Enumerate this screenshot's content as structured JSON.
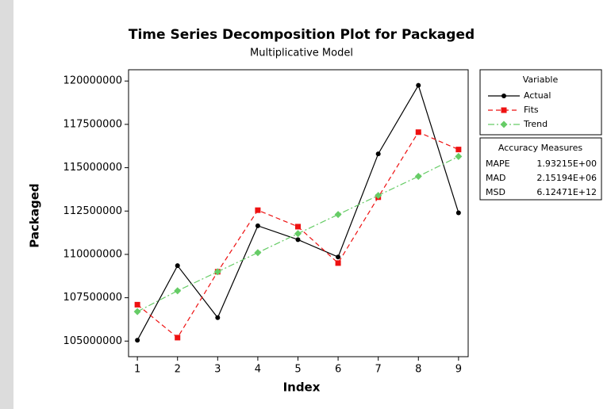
{
  "chart_data": {
    "type": "line",
    "title": "Time Series Decomposition Plot for Packaged",
    "subtitle": "Multiplicative Model",
    "x_label": "Index",
    "y_label": "Packaged",
    "x": [
      1,
      2,
      3,
      4,
      5,
      6,
      7,
      8,
      9
    ],
    "xlim": [
      0.78,
      9.24
    ],
    "xticks": [
      1,
      2,
      3,
      4,
      5,
      6,
      7,
      8,
      9
    ],
    "ylim": [
      104100000,
      120650000
    ],
    "yticks": [
      105000000,
      107500000,
      110000000,
      112500000,
      115000000,
      117500000,
      120000000
    ],
    "legend_title": "Variable",
    "series": [
      {
        "name": "Actual",
        "color": "#000000",
        "marker": "circle",
        "line_style": "solid",
        "values": [
          105050000,
          109350000,
          106350000,
          111650000,
          110850000,
          109850000,
          115800000,
          119750000,
          112400000
        ]
      },
      {
        "name": "Fits",
        "color": "#ee1111",
        "marker": "square",
        "line_style": "dashed",
        "values": [
          107100000,
          105200000,
          109000000,
          112550000,
          111600000,
          109500000,
          113300000,
          117050000,
          116050000
        ]
      },
      {
        "name": "Trend",
        "color": "#66cc66",
        "marker": "diamond",
        "line_style": "dashdot",
        "values": [
          106700000,
          107900000,
          109000000,
          110100000,
          111200000,
          112300000,
          113400000,
          114500000,
          115650000
        ]
      }
    ],
    "accuracy": {
      "title": "Accuracy Measures",
      "rows": [
        [
          "MAPE",
          "1.93215E+00"
        ],
        [
          "MAD",
          "2.15194E+06"
        ],
        [
          "MSD",
          "6.12471E+12"
        ]
      ]
    }
  }
}
